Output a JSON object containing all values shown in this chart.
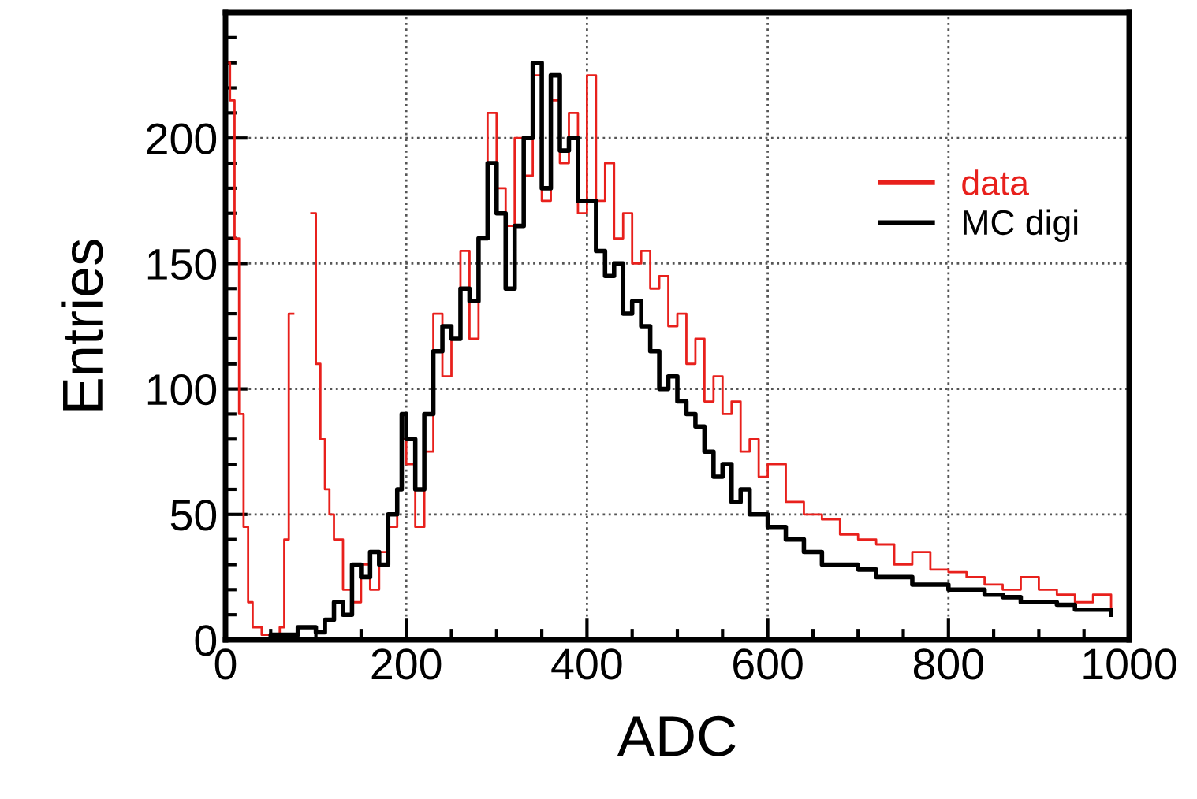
{
  "chart_data": {
    "type": "step",
    "xlabel": "ADC",
    "ylabel": "Entries",
    "xlim": [
      0,
      1000
    ],
    "ylim": [
      0,
      250
    ],
    "xticks": [
      0,
      200,
      400,
      600,
      800,
      1000
    ],
    "yticks": [
      0,
      50,
      100,
      150,
      200
    ],
    "grid": true,
    "legend": "top right",
    "series": [
      {
        "name": "data",
        "color": "#e8201c",
        "x": [
          0,
          5,
          10,
          15,
          20,
          25,
          30,
          40,
          50,
          60,
          65,
          70,
          75,
          90,
          95,
          100,
          105,
          110,
          115,
          120,
          130,
          140,
          150,
          160,
          170,
          180,
          190,
          195,
          200,
          210,
          220,
          230,
          240,
          250,
          260,
          270,
          280,
          290,
          300,
          310,
          320,
          330,
          340,
          350,
          360,
          370,
          380,
          390,
          400,
          410,
          420,
          430,
          440,
          450,
          460,
          470,
          480,
          490,
          500,
          510,
          520,
          530,
          540,
          550,
          560,
          570,
          580,
          590,
          600,
          620,
          640,
          660,
          680,
          700,
          720,
          740,
          760,
          780,
          800,
          820,
          840,
          860,
          880,
          900,
          920,
          940,
          960,
          980
        ],
        "values": [
          230,
          215,
          160,
          90,
          45,
          15,
          5,
          2,
          0,
          5,
          40,
          130,
          null,
          null,
          170,
          110,
          80,
          60,
          50,
          40,
          20,
          15,
          30,
          20,
          35,
          45,
          60,
          80,
          70,
          45,
          75,
          130,
          105,
          120,
          155,
          120,
          160,
          210,
          180,
          165,
          200,
          185,
          225,
          175,
          215,
          190,
          210,
          170,
          225,
          175,
          190,
          160,
          170,
          150,
          155,
          140,
          145,
          125,
          130,
          110,
          120,
          95,
          105,
          90,
          95,
          75,
          80,
          65,
          70,
          55,
          50,
          48,
          42,
          40,
          38,
          30,
          35,
          28,
          27,
          25,
          22,
          20,
          25,
          20,
          18,
          15,
          18,
          12
        ]
      },
      {
        "name": "MC digi",
        "color": "#000000",
        "x": [
          0,
          50,
          80,
          100,
          110,
          120,
          130,
          140,
          150,
          160,
          170,
          180,
          190,
          195,
          200,
          210,
          220,
          230,
          240,
          250,
          260,
          270,
          280,
          290,
          300,
          310,
          320,
          330,
          340,
          350,
          360,
          370,
          380,
          390,
          400,
          410,
          420,
          430,
          440,
          450,
          460,
          470,
          480,
          490,
          500,
          510,
          520,
          530,
          540,
          550,
          560,
          570,
          580,
          600,
          620,
          640,
          660,
          680,
          700,
          720,
          740,
          760,
          780,
          800,
          820,
          840,
          860,
          880,
          900,
          920,
          940,
          960,
          980
        ],
        "values": [
          0,
          2,
          5,
          3,
          8,
          15,
          10,
          30,
          25,
          35,
          30,
          50,
          60,
          90,
          80,
          60,
          90,
          115,
          125,
          120,
          140,
          135,
          160,
          190,
          170,
          140,
          165,
          200,
          230,
          180,
          225,
          195,
          200,
          175,
          175,
          155,
          145,
          150,
          130,
          135,
          125,
          115,
          100,
          105,
          95,
          90,
          85,
          75,
          65,
          70,
          55,
          60,
          50,
          45,
          40,
          35,
          30,
          30,
          28,
          25,
          25,
          22,
          22,
          20,
          20,
          18,
          17,
          15,
          15,
          14,
          12,
          12,
          10
        ]
      }
    ]
  }
}
